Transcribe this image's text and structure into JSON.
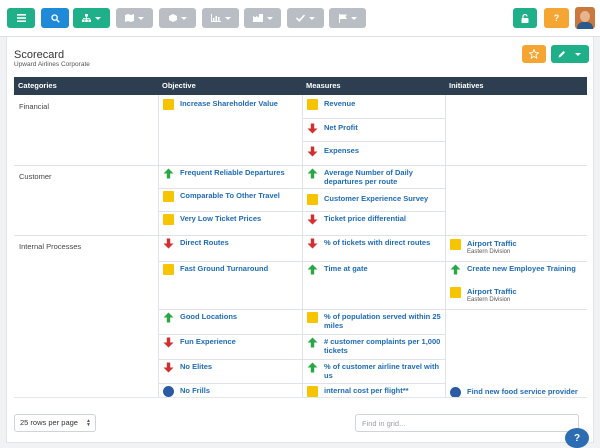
{
  "toolbar": {
    "menu_icon": "hamburger-icon",
    "search_icon": "search-icon",
    "lock_icon": "lock-icon",
    "help_label": "?"
  },
  "header": {
    "title": "Scorecard",
    "subtitle": "Upward Airlines Corporate"
  },
  "columns": [
    "Categories",
    "Objective",
    "Measures",
    "Initiatives"
  ],
  "categories": [
    "Financial",
    "Customer",
    "Internal Processes"
  ],
  "objectives": [
    {
      "label": "Increase Shareholder Value",
      "status": "yellow"
    },
    {
      "label": "Frequent Reliable Departures",
      "status": "up"
    },
    {
      "label": "Comparable To Other Travel",
      "status": "yellow"
    },
    {
      "label": "Very Low Ticket Prices",
      "status": "yellow"
    },
    {
      "label": "Direct Routes",
      "status": "down"
    },
    {
      "label": "Fast Ground Turnaround",
      "status": "yellow"
    },
    {
      "label": "Good Locations",
      "status": "up"
    },
    {
      "label": "Fun Experience",
      "status": "down"
    },
    {
      "label": "No Elites",
      "status": "down"
    },
    {
      "label": "No Frills",
      "status": "blue"
    }
  ],
  "measures": [
    {
      "label": "Revenue",
      "status": "yellow"
    },
    {
      "label": "Net Profit",
      "status": "down"
    },
    {
      "label": "Expenses",
      "status": "down"
    },
    {
      "label": "Average Number of Daily departures per route",
      "status": "up"
    },
    {
      "label": "Customer Experience Survey",
      "status": "yellow"
    },
    {
      "label": "Ticket price differential",
      "status": "down"
    },
    {
      "label": "% of tickets with direct routes",
      "status": "down"
    },
    {
      "label": "Time at gate",
      "status": "up"
    },
    {
      "label": "% of population served within 25 miles",
      "status": "yellow"
    },
    {
      "label": "# customer complaints per 1,000 tickets",
      "status": "up"
    },
    {
      "label": "% of customer airline travel with us",
      "status": "up"
    },
    {
      "label": "internal cost per flight**",
      "status": "yellow"
    }
  ],
  "initiatives": [
    {
      "label": "Airport Traffic",
      "sub": "Eastern Division",
      "status": "yellow"
    },
    {
      "label": "Create new Employee Training",
      "sub": "",
      "status": "up"
    },
    {
      "label": "Airport Traffic",
      "sub": "Eastern Division",
      "status": "yellow"
    },
    {
      "label": "Find new food service provider",
      "sub": "",
      "status": "blue"
    }
  ],
  "footer": {
    "page_size": "25 rows per page",
    "find_placeholder": "Find in grid..."
  },
  "colors": {
    "header_bg": "#2c3e50",
    "link": "#1f6bb5",
    "up": "#27a844",
    "down": "#d32f2f",
    "warn": "#f7c400",
    "info": "#2b5aa5",
    "teal": "#1fb08a",
    "orange": "#f4a532"
  }
}
